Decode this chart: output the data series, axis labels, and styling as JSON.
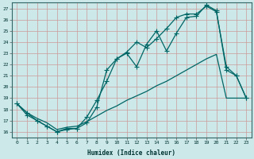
{
  "title": "",
  "xlabel": "Humidex (Indice chaleur)",
  "bg_color": "#cce8e8",
  "grid_color": "#aacccc",
  "line_color": "#006666",
  "xlim": [
    -0.5,
    23.5
  ],
  "ylim": [
    15.5,
    27.5
  ],
  "xticks": [
    0,
    1,
    2,
    3,
    4,
    5,
    6,
    7,
    8,
    9,
    10,
    11,
    12,
    13,
    14,
    15,
    16,
    17,
    18,
    19,
    20,
    21,
    22,
    23
  ],
  "yticks": [
    16,
    17,
    18,
    19,
    20,
    21,
    22,
    23,
    24,
    25,
    26,
    27
  ],
  "line1_x": [
    0,
    1,
    2,
    3,
    4,
    5,
    6,
    7,
    8,
    9,
    10,
    11,
    12,
    13,
    14,
    15,
    16,
    17,
    18,
    19,
    20,
    21,
    22,
    23
  ],
  "line1_y": [
    18.5,
    17.7,
    17.0,
    16.5,
    16.0,
    16.2,
    16.3,
    17.3,
    18.8,
    20.5,
    22.5,
    23.0,
    21.8,
    23.8,
    25.0,
    23.2,
    24.8,
    26.2,
    26.3,
    27.3,
    26.8,
    21.5,
    21.0,
    19.0
  ],
  "line2_x": [
    0,
    1,
    2,
    3,
    4,
    5,
    6,
    7,
    8,
    9,
    10,
    11,
    12,
    13,
    14,
    15,
    16,
    17,
    18,
    19,
    20,
    21,
    22,
    23
  ],
  "line2_y": [
    18.5,
    17.5,
    17.0,
    16.5,
    16.0,
    16.3,
    16.3,
    16.8,
    18.2,
    21.5,
    22.5,
    23.1,
    24.0,
    23.5,
    24.3,
    25.2,
    26.2,
    26.5,
    26.5,
    27.2,
    26.7,
    21.8,
    21.0,
    19.0
  ],
  "line3_x": [
    0,
    1,
    2,
    3,
    4,
    5,
    6,
    7,
    8,
    9,
    10,
    11,
    12,
    13,
    14,
    15,
    16,
    17,
    18,
    19,
    20,
    21,
    22,
    23
  ],
  "line3_y": [
    18.5,
    17.7,
    17.2,
    16.8,
    16.2,
    16.4,
    16.5,
    16.9,
    17.4,
    17.9,
    18.3,
    18.8,
    19.2,
    19.6,
    20.1,
    20.5,
    21.0,
    21.5,
    22.0,
    22.5,
    22.9,
    19.0,
    19.0,
    19.0
  ]
}
